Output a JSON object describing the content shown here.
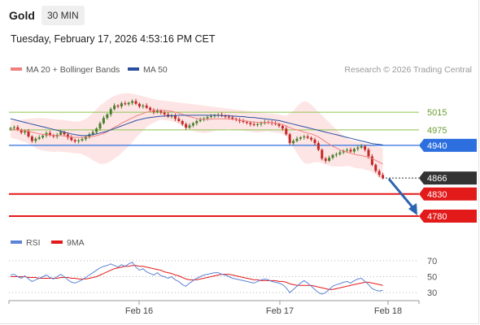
{
  "header": {
    "instrument": "Gold",
    "timeframe": "30 MIN",
    "datetime": "Tuesday, February 17, 2026 4:53:16 PM CET"
  },
  "legend": {
    "ma20": "MA 20 + Bollinger Bands",
    "ma50": "MA 50",
    "rsi": "RSI",
    "ma9": "9MA",
    "research": "Research © 2026 Trading Central"
  },
  "colors": {
    "ma20": "#f08080",
    "band_fill": "#fde2e2",
    "ma50": "#2b4ea0",
    "up": "#4a7f2c",
    "down": "#c42828",
    "resistance": "#8fc44f",
    "pivot": "#2e6fe0",
    "support": "#e21a1a",
    "last": "#333333",
    "arrow": "#2b64b0",
    "rsi": "#5b82d6",
    "rsi_ma": "#e21a1a"
  },
  "chart_data": [
    {
      "type": "candlestick",
      "ylim": [
        4745,
        5085
      ],
      "x_ticks": [
        "Feb 16",
        "Feb 17",
        "Feb 18"
      ],
      "price_levels": [
        {
          "label": "5015",
          "value": 5015,
          "kind": "resistance"
        },
        {
          "label": "4975",
          "value": 4975,
          "kind": "resistance"
        },
        {
          "label": "4940",
          "value": 4940,
          "kind": "pivot"
        },
        {
          "label": "4866",
          "value": 4866,
          "kind": "last"
        },
        {
          "label": "4830",
          "value": 4830,
          "kind": "support"
        },
        {
          "label": "4780",
          "value": 4780,
          "kind": "support"
        }
      ],
      "closes": [
        4979,
        4981,
        4975,
        4969,
        4972,
        4960,
        4950,
        4955,
        4958,
        4962,
        4968,
        4963,
        4960,
        4964,
        4970,
        4965,
        4958,
        4952,
        4949,
        4951,
        4954,
        4960,
        4965,
        4970,
        4978,
        4990,
        5002,
        5010,
        5022,
        5030,
        5028,
        5035,
        5033,
        5036,
        5040,
        5034,
        5028,
        5030,
        5025,
        5020,
        5015,
        5018,
        5014,
        5010,
        5005,
        5008,
        5000,
        4995,
        4988,
        4980,
        4985,
        4990,
        4995,
        4998,
        5001,
        5004,
        5006,
        5008,
        5009,
        5007,
        5005,
        5003,
        5000,
        4998,
        4995,
        4993,
        4991,
        4988,
        4986,
        4988,
        4990,
        4993,
        4992,
        4990,
        4988,
        4984,
        4978,
        4965,
        4945,
        4950,
        4955,
        4958,
        4960,
        4957,
        4953,
        4945,
        4930,
        4910,
        4905,
        4912,
        4918,
        4920,
        4924,
        4928,
        4930,
        4926,
        4932,
        4935,
        4938,
        4930,
        4915,
        4896,
        4882,
        4873,
        4866
      ],
      "ma20": [
        4976,
        4976,
        4975,
        4974,
        4973,
        4972,
        4970,
        4968,
        4966,
        4965,
        4964,
        4963,
        4962,
        4962,
        4962,
        4961,
        4960,
        4959,
        4958,
        4958,
        4958,
        4958,
        4959,
        4960,
        4962,
        4964,
        4967,
        4971,
        4976,
        4981,
        4985,
        4990,
        4994,
        4998,
        5002,
        5006,
        5009,
        5012,
        5015,
        5017,
        5018,
        5019,
        5020,
        5019,
        5018,
        5017,
        5015,
        5013,
        5010,
        5007,
        5005,
        5003,
        5001,
        5000,
        4999,
        4999,
        4999,
        5000,
        5000,
        5000,
        5000,
        5000,
        4999,
        4998,
        4997,
        4996,
        4995,
        4994,
        4993,
        4992,
        4992,
        4992,
        4992,
        4991,
        4990,
        4989,
        4987,
        4984,
        4980,
        4977,
        4975,
        4973,
        4970,
        4968,
        4966,
        4963,
        4959,
        4954,
        4948,
        4943,
        4938,
        4934,
        4930,
        4927,
        4925,
        4922,
        4920,
        4918,
        4917,
        4915,
        4913,
        4910,
        4906,
        4902,
        4898
      ],
      "band_upper": [
        4995,
        4996,
        4997,
        4998,
        4999,
        5000,
        5001,
        5002,
        5002,
        5002,
        5001,
        5000,
        4999,
        4998,
        4998,
        4997,
        4996,
        4995,
        4994,
        4994,
        4996,
        5000,
        5006,
        5014,
        5022,
        5030,
        5036,
        5042,
        5048,
        5052,
        5055,
        5057,
        5058,
        5058,
        5057,
        5055,
        5053,
        5051,
        5049,
        5047,
        5045,
        5043,
        5042,
        5041,
        5040,
        5039,
        5038,
        5037,
        5036,
        5035,
        5034,
        5033,
        5032,
        5031,
        5030,
        5029,
        5028,
        5027,
        5026,
        5025,
        5024,
        5023,
        5022,
        5021,
        5020,
        5019,
        5018,
        5017,
        5016,
        5015,
        5014,
        5013,
        5012,
        5012,
        5011,
        5010,
        5008,
        5007,
        5012,
        5018,
        5028,
        5036,
        5040,
        5038,
        5032,
        5024,
        5016,
        5008,
        5000,
        4992,
        4984,
        4976,
        4968,
        4962,
        4956,
        4952,
        4950,
        4948,
        4946,
        4945,
        4943,
        4940,
        4938,
        4936,
        4934
      ],
      "band_lower": [
        4957,
        4956,
        4953,
        4950,
        4947,
        4944,
        4939,
        4934,
        4930,
        4928,
        4927,
        4926,
        4925,
        4926,
        4926,
        4925,
        4924,
        4923,
        4922,
        4922,
        4920,
        4916,
        4912,
        4906,
        4902,
        4898,
        4898,
        4900,
        4904,
        4910,
        4915,
        4923,
        4930,
        4938,
        4947,
        4957,
        4965,
        4973,
        4981,
        4987,
        4991,
        4995,
        4998,
        4997,
        4996,
        4995,
        4992,
        4989,
        4984,
        4979,
        4976,
        4973,
        4970,
        4969,
        4968,
        4969,
        4970,
        4973,
        4974,
        4975,
        4976,
        4977,
        4976,
        4975,
        4974,
        4973,
        4972,
        4971,
        4970,
        4969,
        4970,
        4971,
        4972,
        4970,
        4969,
        4968,
        4966,
        4961,
        4948,
        4936,
        4922,
        4910,
        4900,
        4898,
        4900,
        4902,
        4902,
        4900,
        4896,
        4894,
        4892,
        4892,
        4892,
        4892,
        4894,
        4892,
        4890,
        4888,
        4888,
        4885,
        4883,
        4880,
        4874,
        4868,
        4862
      ],
      "ma50": [
        5000,
        4998,
        4996,
        4994,
        4992,
        4990,
        4988,
        4986,
        4984,
        4982,
        4980,
        4978,
        4976,
        4974,
        4972,
        4970,
        4968,
        4966,
        4964,
        4963,
        4962,
        4962,
        4963,
        4964,
        4966,
        4968,
        4970,
        4972,
        4975,
        4978,
        4981,
        4984,
        4987,
        4990,
        4993,
        4996,
        4998,
        5000,
        5002,
        5003,
        5004,
        5005,
        5006,
        5006,
        5007,
        5007,
        5007,
        5008,
        5008,
        5008,
        5008,
        5008,
        5008,
        5008,
        5008,
        5008,
        5008,
        5008,
        5008,
        5007,
        5007,
        5007,
        5006,
        5006,
        5005,
        5005,
        5004,
        5003,
        5003,
        5002,
        5001,
        5000,
        4999,
        4998,
        4997,
        4996,
        4994,
        4992,
        4990,
        4988,
        4986,
        4984,
        4982,
        4980,
        4978,
        4976,
        4974,
        4972,
        4970,
        4968,
        4966,
        4964,
        4962,
        4960,
        4958,
        4956,
        4954,
        4952,
        4950,
        4948,
        4946,
        4944,
        4943,
        4942,
        4941
      ]
    },
    {
      "type": "line",
      "ylim": [
        22,
        78
      ],
      "y_ticks": [
        "70",
        "50",
        "30"
      ],
      "y_tick_values": [
        70,
        50,
        30
      ],
      "series": [
        {
          "name": "RSI",
          "values": [
            52,
            53,
            50,
            48,
            51,
            47,
            44,
            46,
            48,
            50,
            52,
            49,
            47,
            50,
            53,
            50,
            46,
            43,
            42,
            44,
            46,
            49,
            52,
            55,
            58,
            61,
            63,
            64,
            66,
            64,
            62,
            65,
            63,
            66,
            68,
            62,
            58,
            60,
            56,
            54,
            52,
            55,
            51,
            50,
            48,
            50,
            46,
            44,
            40,
            38,
            42,
            45,
            48,
            50,
            52,
            53,
            54,
            55,
            55,
            53,
            52,
            50,
            48,
            47,
            46,
            45,
            44,
            43,
            42,
            44,
            46,
            47,
            46,
            44,
            43,
            42,
            40,
            36,
            30,
            34,
            38,
            42,
            45,
            42,
            38,
            34,
            30,
            28,
            30,
            34,
            38,
            40,
            41,
            43,
            44,
            42,
            45,
            47,
            48,
            44,
            40,
            35,
            33,
            32,
            33
          ]
        },
        {
          "name": "9MA",
          "values": [
            50,
            50,
            50,
            50,
            50,
            49,
            49,
            49,
            48,
            48,
            48,
            48,
            48,
            48,
            49,
            49,
            49,
            48,
            48,
            47,
            47,
            47,
            48,
            49,
            50,
            52,
            54,
            56,
            58,
            60,
            61,
            62,
            63,
            63,
            64,
            64,
            63,
            63,
            62,
            61,
            60,
            59,
            58,
            56,
            55,
            54,
            52,
            51,
            49,
            47,
            46,
            46,
            46,
            47,
            48,
            49,
            50,
            51,
            52,
            53,
            53,
            53,
            52,
            51,
            50,
            49,
            48,
            47,
            46,
            46,
            45,
            45,
            45,
            45,
            45,
            44,
            44,
            43,
            41,
            40,
            39,
            39,
            39,
            39,
            39,
            38,
            37,
            36,
            35,
            34,
            34,
            35,
            36,
            37,
            38,
            39,
            40,
            41,
            42,
            43,
            43,
            42,
            41,
            40,
            39
          ]
        }
      ]
    }
  ]
}
